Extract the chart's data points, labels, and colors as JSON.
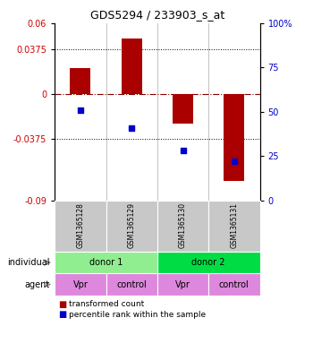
{
  "title": "GDS5294 / 233903_s_at",
  "samples": [
    "GSM1365128",
    "GSM1365129",
    "GSM1365130",
    "GSM1365131"
  ],
  "red_bars": [
    0.022,
    0.047,
    -0.025,
    -0.073
  ],
  "blue_dots_pct": [
    51,
    41,
    28,
    22
  ],
  "ylim_left": [
    -0.09,
    0.06
  ],
  "ylim_right": [
    0,
    100
  ],
  "yticks_left": [
    -0.09,
    -0.0375,
    0,
    0.0375,
    0.06
  ],
  "yticks_right": [
    0,
    25,
    50,
    75,
    100
  ],
  "ytick_labels_left": [
    "-0.09",
    "-0.0375",
    "0",
    "0.0375",
    "0.06"
  ],
  "ytick_labels_right": [
    "0",
    "25",
    "50",
    "75",
    "100%"
  ],
  "hlines": [
    -0.0375,
    0.0375
  ],
  "zero_line": 0,
  "individual_colors": [
    "#90EE90",
    "#00DD44"
  ],
  "agent_labels": [
    "Vpr",
    "control",
    "Vpr",
    "control"
  ],
  "agent_color": "#DD88DD",
  "legend_red": "transformed count",
  "legend_blue": "percentile rank within the sample",
  "bar_color": "#AA0000",
  "dot_color": "#0000CC",
  "bar_width": 0.4,
  "bg_color": "#FFFFFF",
  "grey_color": "#C8C8C8"
}
